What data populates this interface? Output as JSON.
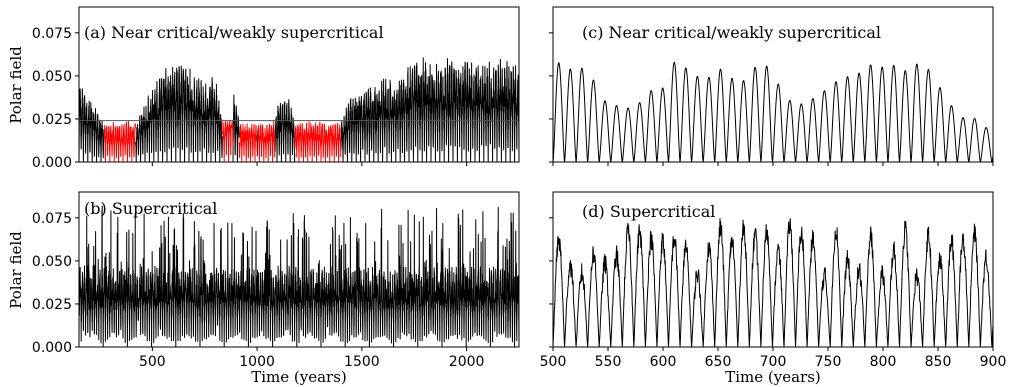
{
  "figure": {
    "ylabel": "Polar field",
    "xlabel": "Time (years)"
  },
  "chart_data": [
    {
      "id": "a",
      "type": "line",
      "panel_label": "(a)",
      "title": "Near critical/weakly supercritical",
      "xlabel": "",
      "ylabel": "Polar field",
      "xlim": [
        150,
        2250
      ],
      "ylim": [
        0,
        0.09
      ],
      "xticks": [
        500,
        1000,
        1500,
        2000
      ],
      "yticks": [
        0.0,
        0.025,
        0.05,
        0.075
      ],
      "ytick_labels": [
        "0.000",
        "0.025",
        "0.050",
        "0.075"
      ],
      "threshold": 0.024,
      "line_color": "#000000",
      "low_state_color": "#ff0000",
      "low_state_intervals": [
        [
          270,
          420
        ],
        [
          835,
          885
        ],
        [
          915,
          1000
        ],
        [
          1005,
          1085
        ],
        [
          1180,
          1400
        ]
      ],
      "envelope": {
        "x": [
          150,
          200,
          270,
          420,
          500,
          550,
          600,
          650,
          700,
          750,
          800,
          835,
          885,
          915,
          1000,
          1005,
          1085,
          1100,
          1150,
          1180,
          1400,
          1450,
          1500,
          1550,
          1600,
          1650,
          1700,
          1750,
          1800,
          1850,
          1900,
          1950,
          2000,
          2050,
          2100,
          2150,
          2200,
          2250
        ],
        "y": [
          0.047,
          0.038,
          0.024,
          0.024,
          0.045,
          0.055,
          0.058,
          0.06,
          0.052,
          0.048,
          0.05,
          0.024,
          0.045,
          0.024,
          0.024,
          0.024,
          0.024,
          0.035,
          0.04,
          0.024,
          0.024,
          0.04,
          0.045,
          0.043,
          0.05,
          0.048,
          0.052,
          0.06,
          0.062,
          0.058,
          0.06,
          0.063,
          0.061,
          0.06,
          0.058,
          0.062,
          0.06,
          0.058
        ]
      }
    },
    {
      "id": "b",
      "type": "line",
      "panel_label": "(b)",
      "title": "Supercritical",
      "xlabel": "Time (years)",
      "ylabel": "Polar field",
      "xlim": [
        150,
        2250
      ],
      "ylim": [
        0,
        0.09
      ],
      "xticks": [
        500,
        1000,
        1500,
        2000
      ],
      "yticks": [
        0.0,
        0.025,
        0.05,
        0.075
      ],
      "ytick_labels": [
        "0.000",
        "0.025",
        "0.050",
        "0.075"
      ],
      "line_color": "#000000",
      "typical_peak": 0.045,
      "max_peak": 0.082
    },
    {
      "id": "c",
      "type": "line",
      "panel_label": "(c)",
      "title": "Near critical/weakly supercritical",
      "xlabel": "",
      "xlim": [
        500,
        900
      ],
      "ylim": [
        0,
        0.09
      ],
      "xticks": [
        500,
        550,
        600,
        650,
        700,
        750,
        800,
        850,
        900
      ],
      "line_color": "#000000",
      "cycle_period_years": 10.5,
      "cycle_peaks": {
        "x": [
          500,
          505,
          510,
          520,
          525,
          530,
          540,
          550,
          560,
          570,
          580,
          590,
          600,
          605,
          610,
          620,
          630,
          640,
          650,
          660,
          670,
          680,
          690,
          700,
          710,
          720,
          730,
          740,
          750,
          760,
          770,
          780,
          790,
          800,
          805,
          810,
          820,
          830,
          840,
          850,
          860,
          870,
          880,
          890,
          900
        ],
        "y": [
          0.045,
          0.058,
          0.05,
          0.057,
          0.055,
          0.053,
          0.045,
          0.032,
          0.033,
          0.031,
          0.035,
          0.042,
          0.043,
          0.055,
          0.058,
          0.055,
          0.05,
          0.048,
          0.055,
          0.05,
          0.045,
          0.052,
          0.06,
          0.05,
          0.04,
          0.032,
          0.035,
          0.038,
          0.043,
          0.048,
          0.05,
          0.052,
          0.057,
          0.055,
          0.058,
          0.056,
          0.053,
          0.057,
          0.055,
          0.045,
          0.035,
          0.025,
          0.028,
          0.02,
          0.02
        ]
      }
    },
    {
      "id": "d",
      "type": "line",
      "panel_label": "(d)",
      "title": "Supercritical",
      "xlabel": "Time (years)",
      "xlim": [
        500,
        900
      ],
      "ylim": [
        0,
        0.09
      ],
      "xticks": [
        500,
        550,
        600,
        650,
        700,
        750,
        800,
        850,
        900
      ],
      "line_color": "#000000",
      "cycle_period_years": 10.5,
      "typical_peak": 0.055,
      "max_peak": 0.073
    }
  ]
}
